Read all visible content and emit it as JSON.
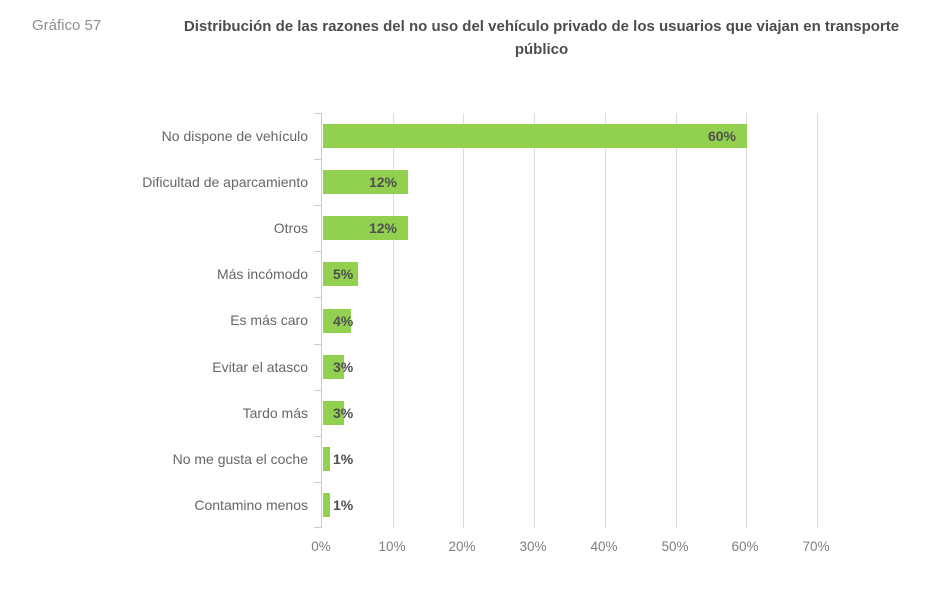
{
  "header": {
    "figure_label": "Gráfico 57",
    "title": "Distribución de las razones del no uso del vehículo privado de los usuarios que viajan en transporte público"
  },
  "chart_data": {
    "type": "bar",
    "orientation": "horizontal",
    "title": "Distribución de las razones del no uso del vehículo privado de los usuarios que viajan en transporte público",
    "categories": [
      "No dispone de vehículo",
      "Dificultad de aparcamiento",
      "Otros",
      "Más incómodo",
      "Es más caro",
      "Evitar el atasco",
      "Tardo más",
      "No me gusta el coche",
      "Contamino menos"
    ],
    "values": [
      60,
      12,
      12,
      5,
      4,
      3,
      3,
      1,
      1
    ],
    "data_labels": [
      "60%",
      "12%",
      "12%",
      "5%",
      "4%",
      "3%",
      "3%",
      "1%",
      "1%"
    ],
    "xlabel": "",
    "ylabel": "",
    "xlim": [
      0,
      70
    ],
    "x_tick_step": 10,
    "x_ticks": [
      "0%",
      "10%",
      "20%",
      "30%",
      "40%",
      "50%",
      "60%",
      "70%"
    ],
    "grid": "vertical",
    "legend": "none",
    "colors": {
      "bar": "#92D050",
      "data_label": "#4f4f4f",
      "category_label": "#666666",
      "tick_label": "#7f7f7f",
      "gridline": "#dcdcdc",
      "axis_line": "#cccccc",
      "title": "#4d4d4d",
      "figure_label": "#8f8f8f",
      "background": "#ffffff"
    }
  }
}
